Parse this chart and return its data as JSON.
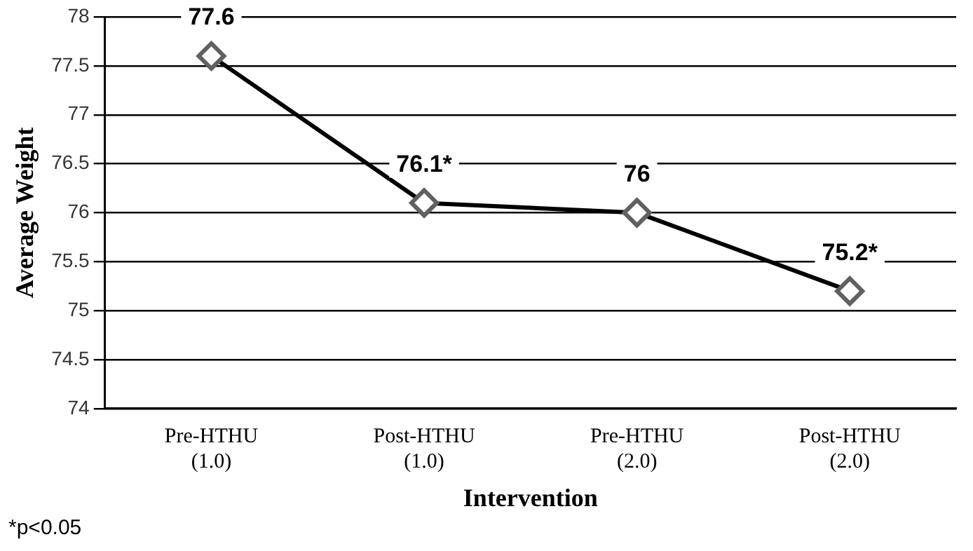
{
  "chart_data": {
    "type": "line",
    "xlabel": "Intervention",
    "ylabel": "Average Weight",
    "categories": [
      "Pre-HTHU (1.0)",
      "Post-HTHU (1.0)",
      "Pre-HTHU (2.0)",
      "Post-HTHU (2.0)"
    ],
    "series": [
      {
        "color": "#000000",
        "values": [
          77.6,
          76.1,
          76,
          75.2
        ],
        "value_labels": [
          "77.6",
          "76.1*",
          "76",
          "75.2*"
        ]
      }
    ],
    "ylim": [
      74,
      78
    ],
    "yticks": [
      74,
      74.5,
      75,
      75.5,
      76,
      76.5,
      77,
      77.5,
      78
    ],
    "grid": "y",
    "legend": false,
    "marker": "diamond",
    "line_style": "solid",
    "annotations": [
      "*p<0.05"
    ]
  }
}
